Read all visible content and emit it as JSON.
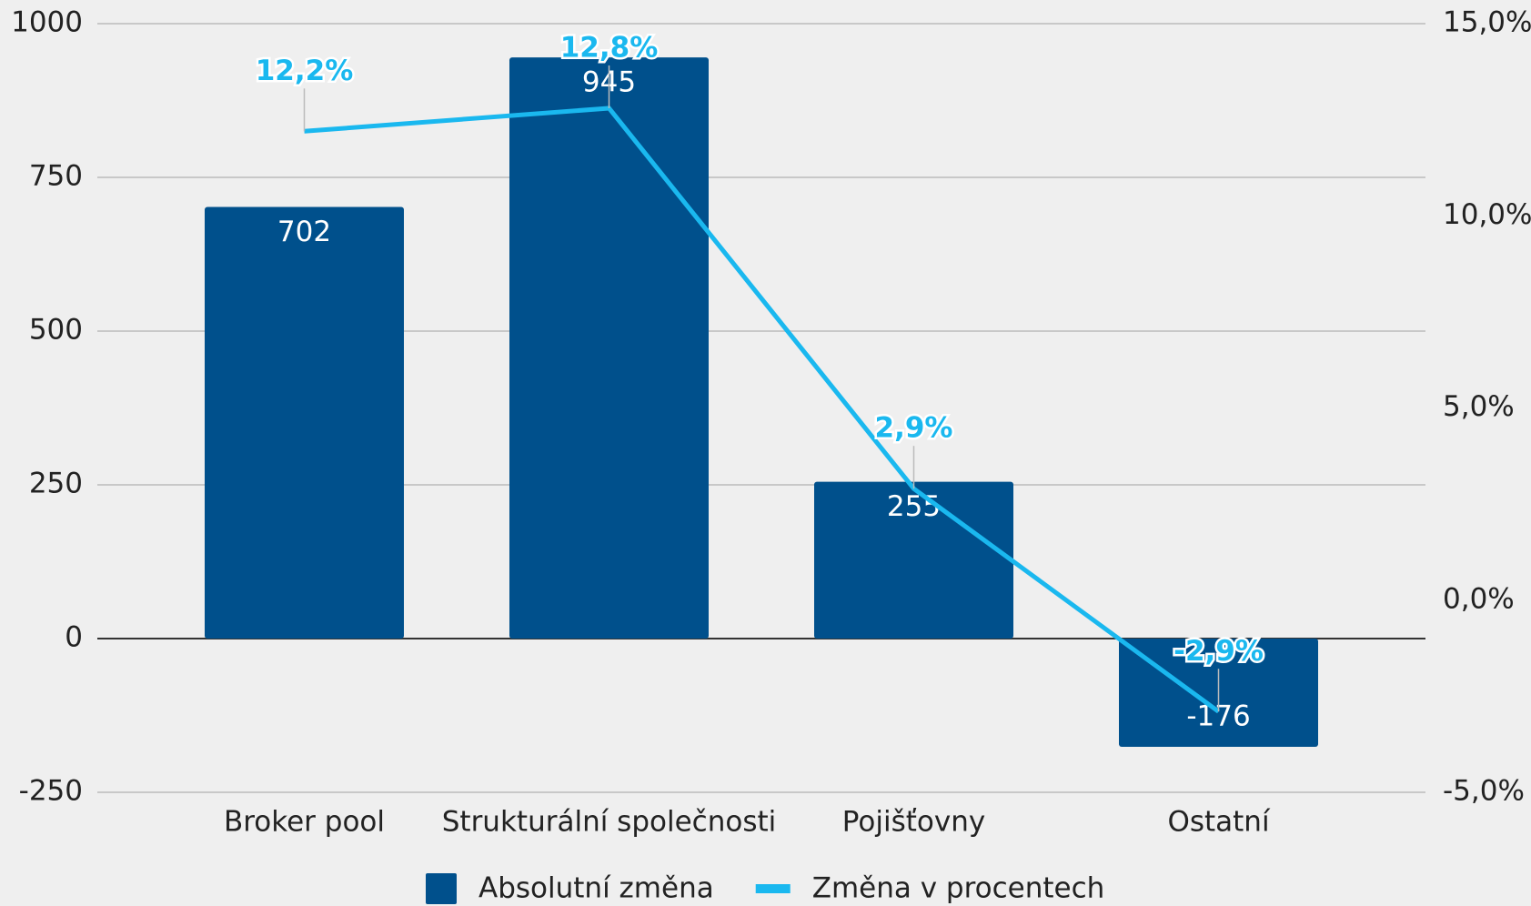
{
  "chart_data": {
    "type": "bar_line",
    "categories": [
      "Broker pool",
      "Strukturální společnosti",
      "Pojišťovny",
      "Ostatní"
    ],
    "series": [
      {
        "name": "Absolutní změna",
        "type": "bar",
        "color": "#00508c",
        "values": [
          702,
          945,
          255,
          -176
        ]
      },
      {
        "name": "Změna v procentech",
        "type": "line",
        "axis": "y2",
        "color": "#1ab8ef",
        "values": [
          12.2,
          12.8,
          2.9,
          -2.9
        ],
        "value_labels": [
          "12,2%",
          "12,8%",
          "2,9%",
          "-2,9%"
        ]
      }
    ],
    "ylim": [
      -250,
      1000
    ],
    "yticks": [
      -250,
      0,
      250,
      500,
      750,
      1000
    ],
    "y2lim": [
      -5,
      15
    ],
    "y2ticks": [
      {
        "value": -5,
        "label": "-5,0%"
      },
      {
        "value": 0,
        "label": "0,0%"
      },
      {
        "value": 5,
        "label": "5,0%"
      },
      {
        "value": 10,
        "label": "10,0%"
      },
      {
        "value": 15,
        "label": "15,0%"
      }
    ],
    "grid": true,
    "legend": "bottom"
  }
}
